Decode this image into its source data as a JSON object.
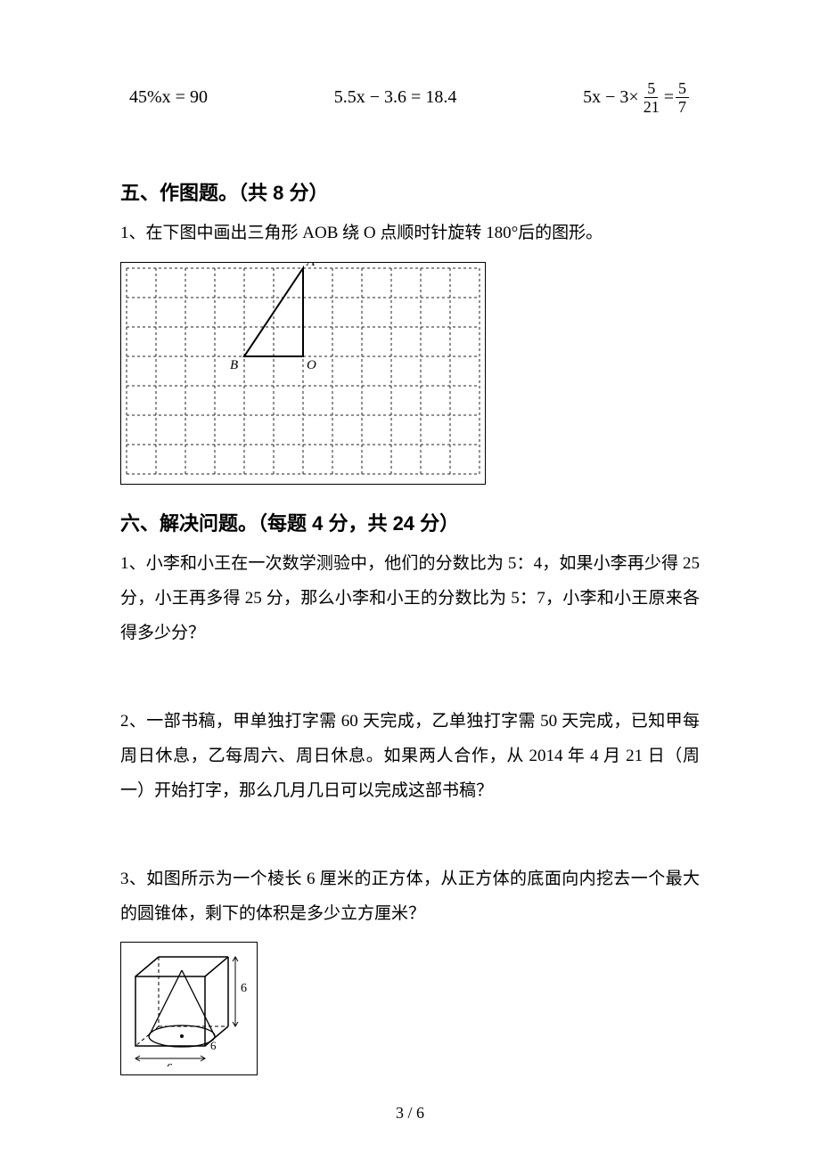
{
  "equations": {
    "eq1_lhs": "45%x",
    "eq1_rhs": "90",
    "eq2_lhs": "5.5x − 3.6",
    "eq2_rhs": "18.4",
    "eq3_lhs_a": "5x − 3×",
    "eq3_frac1_num": "5",
    "eq3_frac1_den": "21",
    "eq3_eq": "=",
    "eq3_frac2_num": "5",
    "eq3_frac2_den": "7"
  },
  "section5": {
    "title": "五、作图题。（共 8 分）",
    "q1": "1、在下图中画出三角形 AOB 绕 O 点顺时针旋转 180°后的图形。",
    "grid": {
      "cols": 12,
      "rows": 7,
      "cell": 33,
      "stroke_color": "#222222",
      "dash": "3,3",
      "B_cell": {
        "col": 4,
        "row": 3
      },
      "O_cell": {
        "col": 6,
        "row": 3
      },
      "A_cell": {
        "col": 6,
        "row": 0
      },
      "labels": {
        "A": "A",
        "B": "B",
        "O": "O"
      }
    }
  },
  "section6": {
    "title": "六、解决问题。（每题 4 分，共 24 分）",
    "q1": "1、小李和小王在一次数学测验中，他们的分数比为 5：4，如果小李再少得 25 分，小王再多得 25 分，那么小李和小王的分数比为 5：7，小李和小王原来各得多少分？",
    "q2": "2、一部书稿，甲单独打字需 60 天完成，乙单独打字需 50 天完成，已知甲每周日休息，乙每周六、周日休息。如果两人合作，从 2014 年 4 月 21 日（周一）开始打字，那么几月几日可以完成这部书稿？",
    "q3": "3、如图所示为一个棱长 6 厘米的正方体，从正方体的底面向内挖去一个最大的圆锥体，剩下的体积是多少立方厘米？",
    "cube": {
      "side_label": "6",
      "stroke_color": "#000000"
    }
  },
  "page_number": "3 / 6"
}
